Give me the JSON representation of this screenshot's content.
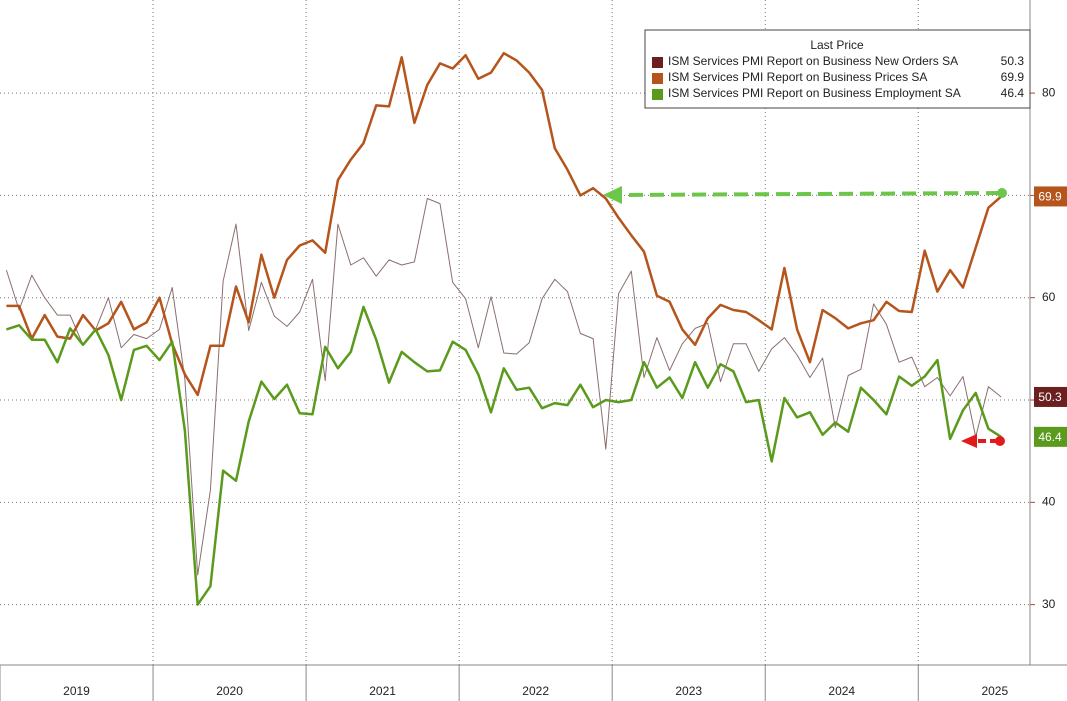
{
  "chart_data": {
    "type": "line",
    "legend_title": "Last Price",
    "x": [
      2019.042,
      2019.125,
      2019.208,
      2019.292,
      2019.375,
      2019.458,
      2019.542,
      2019.625,
      2019.708,
      2019.792,
      2019.875,
      2019.958,
      2020.042,
      2020.125,
      2020.208,
      2020.292,
      2020.375,
      2020.458,
      2020.542,
      2020.625,
      2020.708,
      2020.792,
      2020.875,
      2020.958,
      2021.042,
      2021.125,
      2021.208,
      2021.292,
      2021.375,
      2021.458,
      2021.542,
      2021.625,
      2021.708,
      2021.792,
      2021.875,
      2021.958,
      2022.042,
      2022.125,
      2022.208,
      2022.292,
      2022.375,
      2022.458,
      2022.542,
      2022.625,
      2022.708,
      2022.792,
      2022.875,
      2022.958,
      2023.042,
      2023.125,
      2023.208,
      2023.292,
      2023.375,
      2023.458,
      2023.542,
      2023.625,
      2023.708,
      2023.792,
      2023.875,
      2023.958,
      2024.042,
      2024.125,
      2024.208,
      2024.292,
      2024.375,
      2024.458,
      2024.542,
      2024.625,
      2024.708,
      2024.792,
      2024.875,
      2024.958,
      2025.042,
      2025.125,
      2025.208,
      2025.292,
      2025.375,
      2025.458,
      2025.542
    ],
    "series": [
      {
        "name": "ISM Services PMI Report on Business New Orders SA",
        "color": "#8a6f6f",
        "legend_color": "#6b1f1f",
        "width": 1,
        "values": [
          62.7,
          58.8,
          62.2,
          60,
          58.3,
          58.3,
          55.4,
          56.9,
          60,
          55.1,
          56.4,
          56,
          56.9,
          61,
          52,
          32.9,
          41.2,
          61.6,
          67.2,
          56.8,
          61.5,
          58.2,
          57.2,
          58.6,
          61.8,
          51.9,
          67.2,
          63.2,
          63.9,
          62.1,
          63.7,
          63.2,
          63.5,
          69.7,
          69.2,
          61.5,
          59.9,
          55.1,
          60.1,
          54.6,
          54.5,
          55.6,
          59.9,
          61.8,
          60.6,
          56.5,
          56,
          45.2,
          60.4,
          62.6,
          52.2,
          56.1,
          52.9,
          55.5,
          57,
          57.5,
          51.8,
          55.5,
          55.5,
          52.8,
          55,
          56.1,
          54.4,
          52.2,
          54.1,
          47.3,
          52.4,
          53,
          59.4,
          57.4,
          53.7,
          54.2,
          51.3,
          52.2,
          50.4,
          52.3,
          46.4,
          51.3,
          50.3
        ]
      },
      {
        "name": "ISM Services PMI Report on Business Prices SA",
        "color": "#b5541b",
        "legend_color": "#b5541b",
        "width": 2.5,
        "values": [
          59.2,
          59.2,
          56,
          58.3,
          56.2,
          56,
          58.3,
          56.8,
          57.5,
          59.6,
          56.9,
          57.6,
          60,
          55.5,
          52.5,
          50.5,
          55.3,
          55.3,
          61.1,
          57.6,
          64.2,
          60,
          63.7,
          65.1,
          65.6,
          64.4,
          71.5,
          73.5,
          75.1,
          78.8,
          78.7,
          83.5,
          77.1,
          80.8,
          82.9,
          82.4,
          83.7,
          81.4,
          82,
          83.9,
          83.2,
          82,
          80.3,
          74.6,
          72.5,
          70,
          70.7,
          69.7,
          67.8,
          66.1,
          64.5,
          60.2,
          59.6,
          56.9,
          55.4,
          58,
          59.3,
          58.8,
          58.6,
          57.8,
          56.9,
          62.9,
          56.9,
          53.7,
          58.8,
          58,
          57,
          57.5,
          57.8,
          59.6,
          58.7,
          58.6,
          64.6,
          60.6,
          62.7,
          61,
          64.9,
          68.8,
          69.9
        ]
      },
      {
        "name": "ISM Services PMI Report on Business Employment SA",
        "color": "#5a9a1c",
        "legend_color": "#5a9a1c",
        "width": 2.5,
        "values": [
          56.9,
          57.3,
          55.9,
          55.9,
          53.7,
          57,
          55.4,
          56.9,
          54.4,
          50,
          54.9,
          55.3,
          53.9,
          55.7,
          47,
          30,
          31.8,
          43.1,
          42.1,
          47.9,
          51.8,
          50.1,
          51.5,
          48.7,
          48.6,
          55.2,
          53.1,
          54.7,
          59.1,
          55.9,
          51.7,
          54.7,
          53.7,
          52.8,
          52.9,
          55.7,
          54.9,
          52.5,
          48.8,
          53.1,
          51,
          51.2,
          49.2,
          49.7,
          49.5,
          51.5,
          49.3,
          50,
          49.8,
          50,
          53.7,
          51.2,
          52.2,
          50.2,
          53.7,
          51.2,
          53.5,
          52.8,
          49.8,
          50,
          44,
          50.2,
          48.3,
          48.8,
          46.6,
          47.8,
          46.9,
          51.2,
          50,
          48.6,
          52.3,
          51.4,
          52.3,
          53.9,
          46.2,
          49,
          50.7,
          47.2,
          46.4
        ]
      }
    ],
    "xlim": [
      2019,
      2025.73
    ],
    "xticks": [
      {
        "value": 2019,
        "label": "2019"
      },
      {
        "value": 2020,
        "label": "2020"
      },
      {
        "value": 2021,
        "label": "2021"
      },
      {
        "value": 2022,
        "label": "2022"
      },
      {
        "value": 2023,
        "label": "2023"
      },
      {
        "value": 2024,
        "label": "2024"
      },
      {
        "value": 2025,
        "label": "2025"
      }
    ],
    "ylim": [
      24.1,
      89.1
    ],
    "yticks": [
      30,
      40,
      50,
      60,
      70,
      80
    ],
    "grid": true
  }
}
